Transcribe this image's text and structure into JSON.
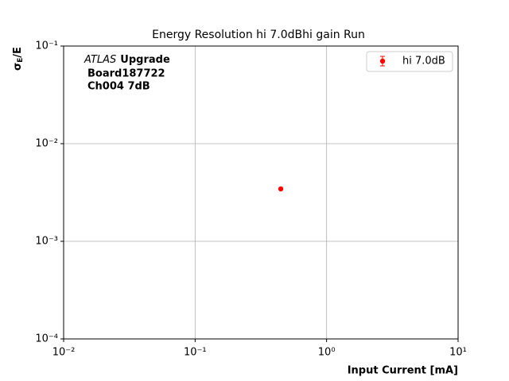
{
  "chart_data": {
    "type": "scatter",
    "title": "Energy Resolution hi 7.0dBhi gain Run",
    "xlabel": "Input Current [mA]",
    "ylabel": {
      "symbol": "σ",
      "subscript": "E",
      "rest": "/E"
    },
    "annotation": {
      "italic": "ATLAS",
      "bold": "Upgrade",
      "lines": [
        "Board187722",
        "Ch004 7dB"
      ]
    },
    "xscale": "log",
    "yscale": "log",
    "xlim": [
      0.01,
      10
    ],
    "ylim": [
      0.0001,
      0.1
    ],
    "xticks": [
      {
        "value": 0.01,
        "label": "10⁻²"
      },
      {
        "value": 0.1,
        "label": "10⁻¹"
      },
      {
        "value": 1,
        "label": "10⁰"
      },
      {
        "value": 10,
        "label": "10¹"
      }
    ],
    "yticks": [
      {
        "value": 0.0001,
        "label": "10⁻⁴"
      },
      {
        "value": 0.001,
        "label": "10⁻³"
      },
      {
        "value": 0.01,
        "label": "10⁻²"
      },
      {
        "value": 0.1,
        "label": "10⁻¹"
      }
    ],
    "grid": true,
    "legend": "upper right",
    "series": [
      {
        "name": "hi 7.0dB",
        "color": "#ff0000",
        "x": [
          0.448
        ],
        "values": [
          0.00344
        ]
      }
    ]
  }
}
